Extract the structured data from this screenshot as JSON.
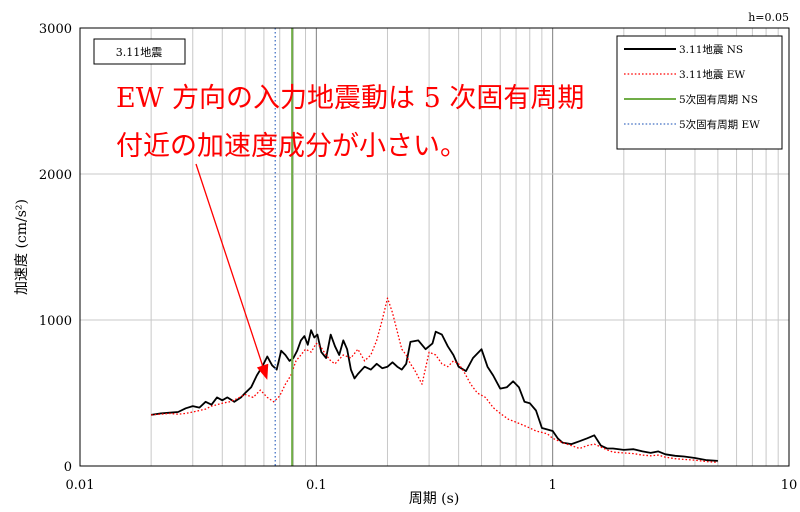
{
  "chart_data": {
    "type": "line",
    "corner_label": "h=0.05",
    "event_label": "3.11地震",
    "xlabel": "周期 (s)",
    "ylabel": "加速度 (cm/s²)",
    "x_scale": "log",
    "xlim": [
      0.01,
      10
    ],
    "ylim": [
      0,
      3000
    ],
    "x_ticks": [
      {
        "value": 0.01,
        "label": "0.01"
      },
      {
        "value": 0.1,
        "label": "0.1"
      },
      {
        "value": 1,
        "label": "1"
      },
      {
        "value": 10,
        "label": "10"
      }
    ],
    "y_ticks": [
      {
        "value": 0,
        "label": "0"
      },
      {
        "value": 1000,
        "label": "1000"
      },
      {
        "value": 2000,
        "label": "2000"
      },
      {
        "value": 3000,
        "label": "3000"
      }
    ],
    "grid": true,
    "legend_position": "top-right",
    "annotation": {
      "lines": [
        "EW 方向の入力地震動は 5 次固有周期",
        "付近の加速度成分が小さい。"
      ],
      "arrow_target": {
        "x": 0.062,
        "y": 590
      }
    },
    "series": [
      {
        "name": "3.11地震 NS",
        "color": "#000000",
        "style": "solid",
        "points": [
          [
            0.02,
            350
          ],
          [
            0.022,
            360
          ],
          [
            0.024,
            365
          ],
          [
            0.026,
            370
          ],
          [
            0.028,
            395
          ],
          [
            0.03,
            410
          ],
          [
            0.032,
            400
          ],
          [
            0.034,
            440
          ],
          [
            0.036,
            420
          ],
          [
            0.038,
            470
          ],
          [
            0.04,
            450
          ],
          [
            0.042,
            470
          ],
          [
            0.045,
            440
          ],
          [
            0.048,
            470
          ],
          [
            0.05,
            500
          ],
          [
            0.053,
            540
          ],
          [
            0.056,
            620
          ],
          [
            0.059,
            680
          ],
          [
            0.062,
            750
          ],
          [
            0.065,
            690
          ],
          [
            0.068,
            660
          ],
          [
            0.071,
            790
          ],
          [
            0.074,
            760
          ],
          [
            0.077,
            720
          ],
          [
            0.08,
            740
          ],
          [
            0.083,
            790
          ],
          [
            0.086,
            860
          ],
          [
            0.089,
            890
          ],
          [
            0.092,
            830
          ],
          [
            0.095,
            930
          ],
          [
            0.098,
            880
          ],
          [
            0.101,
            900
          ],
          [
            0.105,
            780
          ],
          [
            0.11,
            740
          ],
          [
            0.115,
            900
          ],
          [
            0.12,
            820
          ],
          [
            0.125,
            760
          ],
          [
            0.13,
            860
          ],
          [
            0.135,
            800
          ],
          [
            0.14,
            660
          ],
          [
            0.145,
            600
          ],
          [
            0.15,
            630
          ],
          [
            0.16,
            680
          ],
          [
            0.17,
            660
          ],
          [
            0.18,
            700
          ],
          [
            0.19,
            670
          ],
          [
            0.2,
            680
          ],
          [
            0.21,
            710
          ],
          [
            0.22,
            680
          ],
          [
            0.23,
            660
          ],
          [
            0.24,
            700
          ],
          [
            0.25,
            850
          ],
          [
            0.27,
            860
          ],
          [
            0.29,
            800
          ],
          [
            0.31,
            840
          ],
          [
            0.32,
            920
          ],
          [
            0.34,
            900
          ],
          [
            0.36,
            820
          ],
          [
            0.38,
            760
          ],
          [
            0.4,
            680
          ],
          [
            0.43,
            650
          ],
          [
            0.46,
            740
          ],
          [
            0.5,
            800
          ],
          [
            0.53,
            680
          ],
          [
            0.56,
            620
          ],
          [
            0.6,
            530
          ],
          [
            0.64,
            540
          ],
          [
            0.68,
            580
          ],
          [
            0.72,
            540
          ],
          [
            0.76,
            440
          ],
          [
            0.8,
            430
          ],
          [
            0.85,
            380
          ],
          [
            0.9,
            260
          ],
          [
            0.95,
            250
          ],
          [
            1.0,
            240
          ],
          [
            1.05,
            190
          ],
          [
            1.1,
            160
          ],
          [
            1.2,
            150
          ],
          [
            1.3,
            170
          ],
          [
            1.4,
            190
          ],
          [
            1.5,
            210
          ],
          [
            1.6,
            140
          ],
          [
            1.7,
            120
          ],
          [
            1.8,
            120
          ],
          [
            2.0,
            110
          ],
          [
            2.2,
            115
          ],
          [
            2.4,
            100
          ],
          [
            2.6,
            90
          ],
          [
            2.8,
            100
          ],
          [
            3.0,
            80
          ],
          [
            3.3,
            70
          ],
          [
            3.6,
            65
          ],
          [
            4.0,
            55
          ],
          [
            4.5,
            40
          ],
          [
            5.0,
            35
          ]
        ]
      },
      {
        "name": "3.11地震 EW",
        "color": "#ff0000",
        "style": "dotted",
        "points": [
          [
            0.02,
            350
          ],
          [
            0.022,
            355
          ],
          [
            0.024,
            360
          ],
          [
            0.026,
            355
          ],
          [
            0.028,
            360
          ],
          [
            0.03,
            370
          ],
          [
            0.032,
            380
          ],
          [
            0.034,
            390
          ],
          [
            0.036,
            410
          ],
          [
            0.038,
            420
          ],
          [
            0.04,
            430
          ],
          [
            0.043,
            440
          ],
          [
            0.046,
            460
          ],
          [
            0.05,
            490
          ],
          [
            0.054,
            470
          ],
          [
            0.058,
            520
          ],
          [
            0.062,
            470
          ],
          [
            0.066,
            440
          ],
          [
            0.07,
            480
          ],
          [
            0.074,
            560
          ],
          [
            0.078,
            620
          ],
          [
            0.082,
            720
          ],
          [
            0.086,
            760
          ],
          [
            0.09,
            800
          ],
          [
            0.095,
            780
          ],
          [
            0.1,
            840
          ],
          [
            0.105,
            810
          ],
          [
            0.11,
            760
          ],
          [
            0.115,
            720
          ],
          [
            0.12,
            700
          ],
          [
            0.13,
            760
          ],
          [
            0.14,
            740
          ],
          [
            0.15,
            800
          ],
          [
            0.16,
            720
          ],
          [
            0.17,
            760
          ],
          [
            0.18,
            860
          ],
          [
            0.19,
            1000
          ],
          [
            0.2,
            1150
          ],
          [
            0.21,
            1050
          ],
          [
            0.22,
            920
          ],
          [
            0.23,
            800
          ],
          [
            0.24,
            760
          ],
          [
            0.25,
            700
          ],
          [
            0.26,
            660
          ],
          [
            0.28,
            560
          ],
          [
            0.3,
            780
          ],
          [
            0.32,
            760
          ],
          [
            0.34,
            700
          ],
          [
            0.36,
            680
          ],
          [
            0.38,
            720
          ],
          [
            0.4,
            700
          ],
          [
            0.42,
            650
          ],
          [
            0.45,
            560
          ],
          [
            0.48,
            500
          ],
          [
            0.52,
            470
          ],
          [
            0.56,
            400
          ],
          [
            0.6,
            360
          ],
          [
            0.65,
            320
          ],
          [
            0.7,
            300
          ],
          [
            0.75,
            280
          ],
          [
            0.8,
            260
          ],
          [
            0.85,
            240
          ],
          [
            0.9,
            230
          ],
          [
            0.95,
            220
          ],
          [
            1.0,
            190
          ],
          [
            1.1,
            160
          ],
          [
            1.2,
            140
          ],
          [
            1.3,
            120
          ],
          [
            1.4,
            140
          ],
          [
            1.5,
            150
          ],
          [
            1.6,
            130
          ],
          [
            1.7,
            110
          ],
          [
            1.8,
            95
          ],
          [
            2.0,
            90
          ],
          [
            2.2,
            85
          ],
          [
            2.4,
            75
          ],
          [
            2.6,
            70
          ],
          [
            2.8,
            75
          ],
          [
            3.0,
            60
          ],
          [
            3.3,
            50
          ],
          [
            3.6,
            45
          ],
          [
            4.0,
            40
          ],
          [
            4.5,
            30
          ],
          [
            5.0,
            25
          ]
        ]
      },
      {
        "name": "5次固有周期 NS",
        "color": "#70ad47",
        "style": "vertical-solid",
        "x": 0.079
      },
      {
        "name": "5次固有周期 EW",
        "color": "#4472c4",
        "style": "vertical-dotted",
        "x": 0.067
      }
    ]
  }
}
